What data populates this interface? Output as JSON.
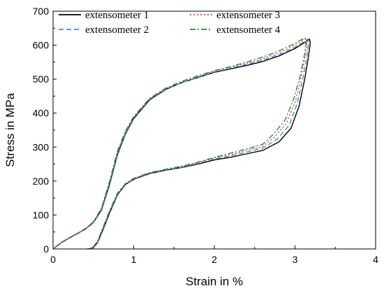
{
  "chart_data": {
    "type": "line",
    "xlabel": "Strain in %",
    "ylabel": "Stress in MPa",
    "xlim": [
      0,
      4
    ],
    "ylim": [
      0,
      700
    ],
    "x_ticks": [
      "0",
      "1",
      "2",
      "3",
      "4"
    ],
    "y_ticks": [
      "0",
      "100",
      "200",
      "300",
      "400",
      "500",
      "600",
      "700"
    ],
    "x_tick_values": [
      0,
      1,
      2,
      3,
      4
    ],
    "y_tick_values": [
      0,
      100,
      200,
      300,
      400,
      500,
      600,
      700
    ],
    "grid": false,
    "legend_position": "top-left",
    "series": [
      {
        "name": "extensometer 1",
        "color": "#000000",
        "dash": "solid",
        "x": [
          0,
          0.1,
          0.2,
          0.3,
          0.4,
          0.5,
          0.6,
          0.7,
          0.8,
          0.9,
          1.0,
          1.2,
          1.4,
          1.6,
          1.8,
          2.0,
          2.2,
          2.4,
          2.6,
          2.8,
          3.0,
          3.1,
          3.15,
          3.18,
          3.19,
          3.17,
          3.12,
          3.05,
          2.95,
          2.8,
          2.6,
          2.4,
          2.2,
          2.0,
          1.8,
          1.6,
          1.4,
          1.2,
          1.0,
          0.9,
          0.8,
          0.7,
          0.6,
          0.55,
          0.5,
          0.47,
          0.44
        ],
        "y": [
          0,
          18,
          32,
          45,
          58,
          78,
          115,
          190,
          280,
          340,
          385,
          440,
          470,
          490,
          505,
          520,
          530,
          540,
          552,
          568,
          590,
          605,
          612,
          618,
          608,
          570,
          500,
          420,
          355,
          315,
          290,
          280,
          270,
          262,
          250,
          240,
          232,
          222,
          205,
          190,
          160,
          105,
          45,
          18,
          5,
          1,
          0
        ]
      },
      {
        "name": "extensometer 2",
        "color": "#3a8fd8",
        "dash": "dashed",
        "x": [
          0,
          0.1,
          0.2,
          0.3,
          0.4,
          0.5,
          0.6,
          0.7,
          0.8,
          0.9,
          1.0,
          1.2,
          1.4,
          1.6,
          1.8,
          2.0,
          2.2,
          2.4,
          2.6,
          2.8,
          3.0,
          3.08,
          3.13,
          3.16,
          3.17,
          3.15,
          3.1,
          3.03,
          2.93,
          2.78,
          2.6,
          2.4,
          2.2,
          2.0,
          1.8,
          1.6,
          1.4,
          1.2,
          1.0,
          0.9,
          0.8,
          0.7,
          0.6,
          0.55,
          0.5,
          0.47,
          0.44
        ],
        "y": [
          0,
          18,
          32,
          45,
          58,
          77,
          112,
          185,
          275,
          338,
          382,
          438,
          469,
          490,
          506,
          521,
          532,
          543,
          556,
          572,
          594,
          606,
          613,
          618,
          607,
          570,
          505,
          430,
          365,
          323,
          297,
          285,
          274,
          265,
          252,
          241,
          233,
          223,
          206,
          191,
          162,
          108,
          48,
          20,
          6,
          1,
          0
        ]
      },
      {
        "name": "extensometer 3",
        "color": "#e03a3a",
        "dash": "dotted",
        "x": [
          0,
          0.1,
          0.2,
          0.3,
          0.4,
          0.5,
          0.6,
          0.7,
          0.8,
          0.9,
          1.0,
          1.2,
          1.4,
          1.6,
          1.8,
          2.0,
          2.2,
          2.4,
          2.6,
          2.8,
          3.0,
          3.06,
          3.11,
          3.14,
          3.15,
          3.13,
          3.08,
          3.01,
          2.9,
          2.75,
          2.6,
          2.4,
          2.2,
          2.0,
          1.8,
          1.6,
          1.4,
          1.2,
          1.0,
          0.9,
          0.8,
          0.7,
          0.6,
          0.55,
          0.5,
          0.46,
          0.43
        ],
        "y": [
          0,
          19,
          33,
          46,
          59,
          79,
          118,
          195,
          285,
          345,
          388,
          442,
          472,
          492,
          508,
          523,
          534,
          546,
          560,
          577,
          600,
          610,
          616,
          620,
          608,
          572,
          510,
          438,
          372,
          330,
          302,
          290,
          278,
          268,
          254,
          243,
          234,
          224,
          207,
          192,
          163,
          110,
          50,
          21,
          7,
          1,
          0
        ]
      },
      {
        "name": "extensometer 4",
        "color": "#2e8b2e",
        "dash": "dashdot",
        "x": [
          0,
          0.1,
          0.2,
          0.3,
          0.4,
          0.5,
          0.6,
          0.7,
          0.8,
          0.9,
          1.0,
          1.2,
          1.4,
          1.6,
          1.8,
          2.0,
          2.2,
          2.4,
          2.6,
          2.8,
          3.0,
          3.05,
          3.1,
          3.13,
          3.14,
          3.12,
          3.07,
          2.99,
          2.88,
          2.73,
          2.6,
          2.4,
          2.2,
          2.0,
          1.8,
          1.6,
          1.4,
          1.2,
          1.0,
          0.9,
          0.8,
          0.7,
          0.6,
          0.55,
          0.5,
          0.46,
          0.42
        ],
        "y": [
          0,
          19,
          33,
          46,
          60,
          80,
          120,
          198,
          290,
          348,
          390,
          444,
          474,
          494,
          510,
          525,
          537,
          550,
          565,
          583,
          605,
          613,
          618,
          621,
          610,
          575,
          515,
          445,
          380,
          337,
          308,
          294,
          282,
          270,
          256,
          244,
          235,
          225,
          208,
          193,
          165,
          112,
          52,
          22,
          7,
          1,
          0
        ]
      }
    ]
  }
}
